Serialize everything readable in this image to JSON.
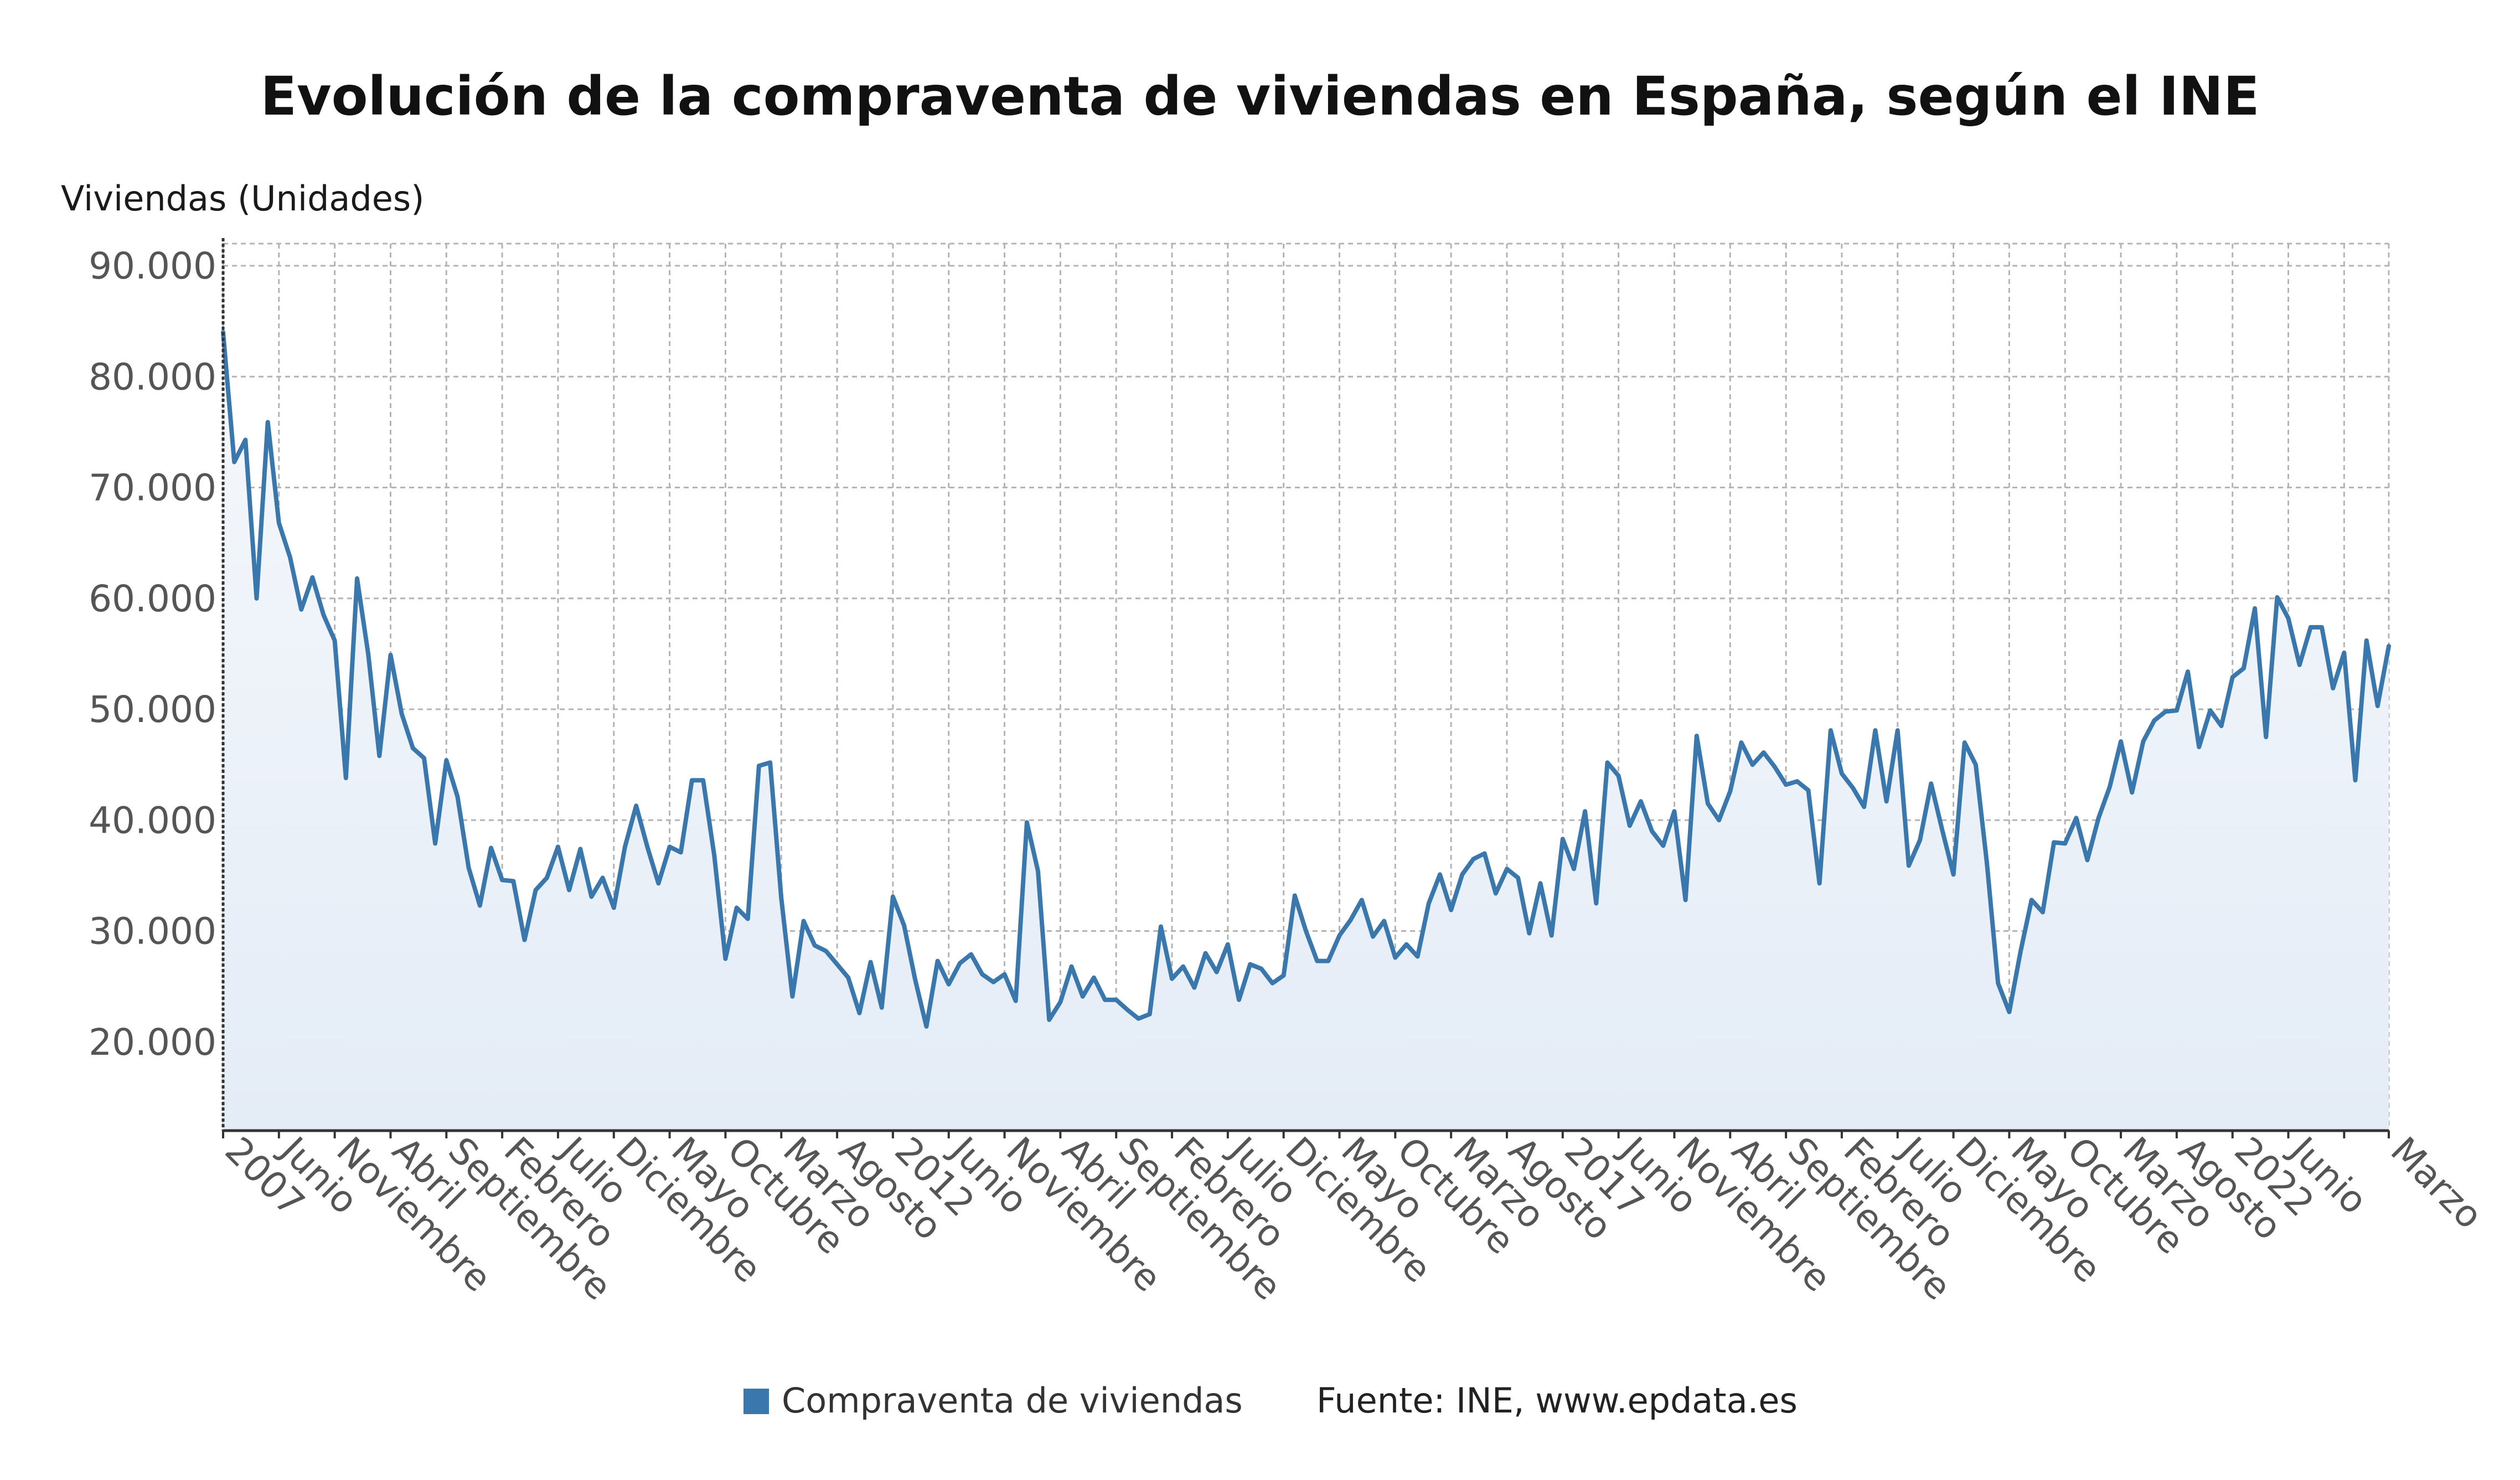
{
  "chart_data": {
    "type": "area",
    "title": "Evolución de la compraventa de viviendas en España, según el INE",
    "ylabel": "Viviendas (Unidades)",
    "xlabel": "",
    "source": "Fuente: INE, www.epdata.es",
    "legend_position": "bottom",
    "grid": true,
    "ylim": [
      12000,
      92000
    ],
    "yticks": [
      20000,
      30000,
      40000,
      50000,
      60000,
      70000,
      80000,
      90000
    ],
    "ytick_labels": [
      "20.000",
      "30.000",
      "40.000",
      "50.000",
      "60.000",
      "70.000",
      "80.000",
      "90.000"
    ],
    "x_start": "2007-01",
    "x_end": "2023-03",
    "x_ticks": [
      {
        "date": "2007-01",
        "label": "2007"
      },
      {
        "date": "2007-06",
        "label": "Junio"
      },
      {
        "date": "2007-11",
        "label": "Noviembre"
      },
      {
        "date": "2008-04",
        "label": "Abril"
      },
      {
        "date": "2008-09",
        "label": "Septiembre"
      },
      {
        "date": "2009-02",
        "label": "Febrero"
      },
      {
        "date": "2009-07",
        "label": "Julio"
      },
      {
        "date": "2009-12",
        "label": "Diciembre"
      },
      {
        "date": "2010-05",
        "label": "Mayo"
      },
      {
        "date": "2010-10",
        "label": "Octubre"
      },
      {
        "date": "2011-03",
        "label": "Marzo"
      },
      {
        "date": "2011-08",
        "label": "Agosto"
      },
      {
        "date": "2012-01",
        "label": "2012"
      },
      {
        "date": "2012-06",
        "label": "Junio"
      },
      {
        "date": "2012-11",
        "label": "Noviembre"
      },
      {
        "date": "2013-04",
        "label": "Abril"
      },
      {
        "date": "2013-09",
        "label": "Septiembre"
      },
      {
        "date": "2014-02",
        "label": "Febrero"
      },
      {
        "date": "2014-07",
        "label": "Julio"
      },
      {
        "date": "2014-12",
        "label": "Diciembre"
      },
      {
        "date": "2015-05",
        "label": "Mayo"
      },
      {
        "date": "2015-10",
        "label": "Octubre"
      },
      {
        "date": "2016-03",
        "label": "Marzo"
      },
      {
        "date": "2016-08",
        "label": "Agosto"
      },
      {
        "date": "2017-01",
        "label": "2017"
      },
      {
        "date": "2017-06",
        "label": "Junio"
      },
      {
        "date": "2017-11",
        "label": "Noviembre"
      },
      {
        "date": "2018-04",
        "label": "Abril"
      },
      {
        "date": "2018-09",
        "label": "Septiembre"
      },
      {
        "date": "2019-02",
        "label": "Febrero"
      },
      {
        "date": "2019-07",
        "label": "Julio"
      },
      {
        "date": "2019-12",
        "label": "Diciembre"
      },
      {
        "date": "2020-05",
        "label": "Mayo"
      },
      {
        "date": "2020-10",
        "label": "Octubre"
      },
      {
        "date": "2021-03",
        "label": "Marzo"
      },
      {
        "date": "2021-08",
        "label": "Agosto"
      },
      {
        "date": "2022-01",
        "label": "2022"
      },
      {
        "date": "2022-06",
        "label": "Junio"
      },
      {
        "date": "2022-11",
        "label": ""
      },
      {
        "date": "2023-03",
        "label": "Marzo"
      }
    ],
    "series": [
      {
        "name": "Compraventa de viviendas",
        "color": "#3a77ad",
        "fill_top": "#f5f8fc",
        "fill_bottom": "#e4ecf6",
        "points": [
          [
            "2007-01",
            84000
          ],
          [
            "2007-02",
            72300
          ],
          [
            "2007-03",
            74300
          ],
          [
            "2007-04",
            60000
          ],
          [
            "2007-05",
            75900
          ],
          [
            "2007-06",
            66800
          ],
          [
            "2007-07",
            63700
          ],
          [
            "2007-08",
            59000
          ],
          [
            "2007-09",
            61900
          ],
          [
            "2007-10",
            58500
          ],
          [
            "2007-11",
            56200
          ],
          [
            "2007-12",
            43800
          ],
          [
            "2008-01",
            61800
          ],
          [
            "2008-02",
            55000
          ],
          [
            "2008-03",
            45800
          ],
          [
            "2008-04",
            54900
          ],
          [
            "2008-05",
            49600
          ],
          [
            "2008-06",
            46500
          ],
          [
            "2008-07",
            45600
          ],
          [
            "2008-08",
            37900
          ],
          [
            "2008-09",
            45400
          ],
          [
            "2008-10",
            42100
          ],
          [
            "2008-11",
            35700
          ],
          [
            "2008-12",
            32300
          ],
          [
            "2009-01",
            37500
          ],
          [
            "2009-02",
            34600
          ],
          [
            "2009-03",
            34500
          ],
          [
            "2009-04",
            29200
          ],
          [
            "2009-05",
            33700
          ],
          [
            "2009-06",
            34800
          ],
          [
            "2009-07",
            37600
          ],
          [
            "2009-08",
            33700
          ],
          [
            "2009-09",
            37400
          ],
          [
            "2009-10",
            33100
          ],
          [
            "2009-11",
            34800
          ],
          [
            "2009-12",
            32100
          ],
          [
            "2010-01",
            37600
          ],
          [
            "2010-02",
            41300
          ],
          [
            "2010-03",
            37600
          ],
          [
            "2010-04",
            34300
          ],
          [
            "2010-05",
            37600
          ],
          [
            "2010-06",
            37100
          ],
          [
            "2010-07",
            43600
          ],
          [
            "2010-08",
            43600
          ],
          [
            "2010-09",
            36800
          ],
          [
            "2010-10",
            27500
          ],
          [
            "2010-11",
            32100
          ],
          [
            "2010-12",
            31100
          ],
          [
            "2011-01",
            44900
          ],
          [
            "2011-02",
            45200
          ],
          [
            "2011-03",
            33000
          ],
          [
            "2011-04",
            24100
          ],
          [
            "2011-05",
            30900
          ],
          [
            "2011-06",
            28700
          ],
          [
            "2011-07",
            28200
          ],
          [
            "2011-08",
            27000
          ],
          [
            "2011-09",
            25800
          ],
          [
            "2011-10",
            22600
          ],
          [
            "2011-11",
            27200
          ],
          [
            "2011-12",
            23100
          ],
          [
            "2012-01",
            33100
          ],
          [
            "2012-02",
            30500
          ],
          [
            "2012-03",
            25600
          ],
          [
            "2012-04",
            21400
          ],
          [
            "2012-05",
            27300
          ],
          [
            "2012-06",
            25200
          ],
          [
            "2012-07",
            27100
          ],
          [
            "2012-08",
            27900
          ],
          [
            "2012-09",
            26100
          ],
          [
            "2012-10",
            25400
          ],
          [
            "2012-11",
            26100
          ],
          [
            "2012-12",
            23700
          ],
          [
            "2013-01",
            39800
          ],
          [
            "2013-02",
            35400
          ],
          [
            "2013-03",
            22000
          ],
          [
            "2013-04",
            23600
          ],
          [
            "2013-05",
            26800
          ],
          [
            "2013-06",
            24100
          ],
          [
            "2013-07",
            25800
          ],
          [
            "2013-08",
            23800
          ],
          [
            "2013-09",
            23800
          ],
          [
            "2013-10",
            22900
          ],
          [
            "2013-11",
            22100
          ],
          [
            "2013-12",
            22500
          ],
          [
            "2014-01",
            30400
          ],
          [
            "2014-02",
            25700
          ],
          [
            "2014-03",
            26800
          ],
          [
            "2014-04",
            24900
          ],
          [
            "2014-05",
            28000
          ],
          [
            "2014-06",
            26300
          ],
          [
            "2014-07",
            28800
          ],
          [
            "2014-08",
            23800
          ],
          [
            "2014-09",
            27000
          ],
          [
            "2014-10",
            26600
          ],
          [
            "2014-11",
            25300
          ],
          [
            "2014-12",
            26000
          ],
          [
            "2015-01",
            33200
          ],
          [
            "2015-02",
            30000
          ],
          [
            "2015-03",
            27300
          ],
          [
            "2015-04",
            27300
          ],
          [
            "2015-05",
            29600
          ],
          [
            "2015-06",
            31000
          ],
          [
            "2015-07",
            32800
          ],
          [
            "2015-08",
            29500
          ],
          [
            "2015-09",
            30900
          ],
          [
            "2015-10",
            27600
          ],
          [
            "2015-11",
            28800
          ],
          [
            "2015-12",
            27700
          ],
          [
            "2016-01",
            32500
          ],
          [
            "2016-02",
            35100
          ],
          [
            "2016-03",
            31900
          ],
          [
            "2016-04",
            35100
          ],
          [
            "2016-05",
            36500
          ],
          [
            "2016-06",
            37000
          ],
          [
            "2016-07",
            33400
          ],
          [
            "2016-08",
            35600
          ],
          [
            "2016-09",
            34800
          ],
          [
            "2016-10",
            29800
          ],
          [
            "2016-11",
            34300
          ],
          [
            "2016-12",
            29600
          ],
          [
            "2017-01",
            38300
          ],
          [
            "2017-02",
            35600
          ],
          [
            "2017-03",
            40800
          ],
          [
            "2017-04",
            32500
          ],
          [
            "2017-05",
            45200
          ],
          [
            "2017-06",
            44000
          ],
          [
            "2017-07",
            39500
          ],
          [
            "2017-08",
            41700
          ],
          [
            "2017-09",
            39000
          ],
          [
            "2017-10",
            37700
          ],
          [
            "2017-11",
            40800
          ],
          [
            "2017-12",
            32800
          ],
          [
            "2018-01",
            47600
          ],
          [
            "2018-02",
            41500
          ],
          [
            "2018-03",
            40000
          ],
          [
            "2018-04",
            42600
          ],
          [
            "2018-05",
            47000
          ],
          [
            "2018-06",
            45000
          ],
          [
            "2018-07",
            46100
          ],
          [
            "2018-08",
            44800
          ],
          [
            "2018-09",
            43200
          ],
          [
            "2018-10",
            43500
          ],
          [
            "2018-11",
            42700
          ],
          [
            "2018-12",
            34300
          ],
          [
            "2019-01",
            48100
          ],
          [
            "2019-02",
            44200
          ],
          [
            "2019-03",
            42900
          ],
          [
            "2019-04",
            41200
          ],
          [
            "2019-05",
            48100
          ],
          [
            "2019-06",
            41700
          ],
          [
            "2019-07",
            48100
          ],
          [
            "2019-08",
            35900
          ],
          [
            "2019-09",
            38200
          ],
          [
            "2019-10",
            43300
          ],
          [
            "2019-11",
            39100
          ],
          [
            "2019-12",
            35100
          ],
          [
            "2020-01",
            47000
          ],
          [
            "2020-02",
            45000
          ],
          [
            "2020-03",
            36100
          ],
          [
            "2020-04",
            25300
          ],
          [
            "2020-05",
            22700
          ],
          [
            "2020-06",
            28100
          ],
          [
            "2020-07",
            32800
          ],
          [
            "2020-08",
            31700
          ],
          [
            "2020-09",
            38000
          ],
          [
            "2020-10",
            37900
          ],
          [
            "2020-11",
            40200
          ],
          [
            "2020-12",
            36400
          ],
          [
            "2021-01",
            40200
          ],
          [
            "2021-02",
            43000
          ],
          [
            "2021-03",
            47100
          ],
          [
            "2021-04",
            42500
          ],
          [
            "2021-05",
            47100
          ],
          [
            "2021-06",
            49000
          ],
          [
            "2021-07",
            49800
          ],
          [
            "2021-08",
            49900
          ],
          [
            "2021-09",
            53400
          ],
          [
            "2021-10",
            46600
          ],
          [
            "2021-11",
            49900
          ],
          [
            "2021-12",
            48500
          ],
          [
            "2022-01",
            52900
          ],
          [
            "2022-02",
            53700
          ],
          [
            "2022-03",
            59100
          ],
          [
            "2022-04",
            47500
          ],
          [
            "2022-05",
            60100
          ],
          [
            "2022-06",
            58200
          ],
          [
            "2022-07",
            54000
          ],
          [
            "2022-08",
            57400
          ],
          [
            "2022-09",
            57400
          ],
          [
            "2022-10",
            51900
          ],
          [
            "2022-11",
            55100
          ],
          [
            "2022-12",
            43600
          ],
          [
            "2023-01",
            56200
          ],
          [
            "2023-02",
            50300
          ],
          [
            "2023-03",
            55700
          ]
        ]
      }
    ]
  }
}
